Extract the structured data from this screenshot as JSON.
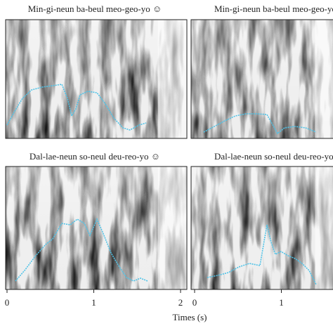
{
  "panels": [
    {
      "title": "Min-gi-neun ba-beul meo-geo-yo ☺"
    },
    {
      "title": "Min-gi-neun ba-beul meo-geo-yo ☺"
    },
    {
      "title": "Dal-lae-neun so-neul deu-reo-yo ☺"
    },
    {
      "title": "Dal-lae-neun so-neul deu-reo-yo ☺"
    }
  ],
  "x_axis": {
    "label": "Times (s)",
    "left_ticks": [
      0,
      1,
      2
    ],
    "right_ticks": [
      0,
      1
    ]
  }
}
